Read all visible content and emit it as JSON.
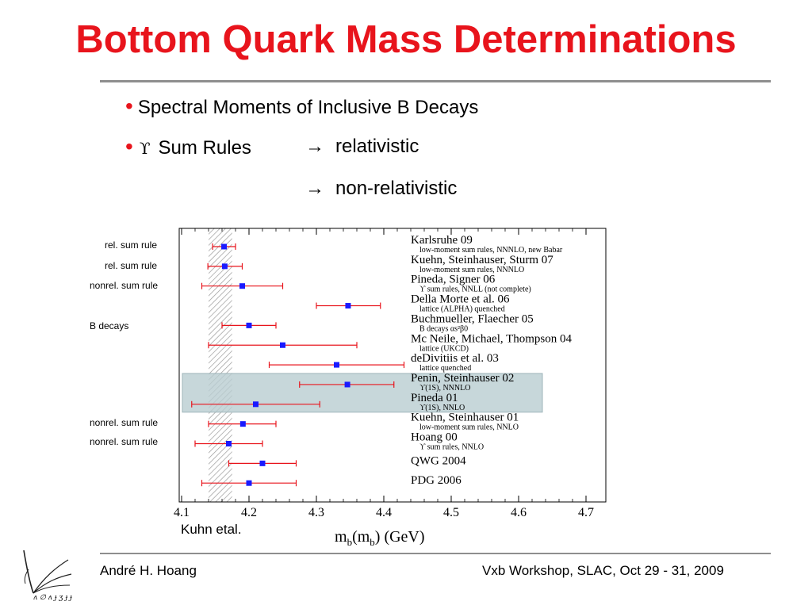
{
  "title": "Bottom Quark Mass Determinations",
  "bullets": {
    "b1": "Spectral Moments of Inclusive B Decays",
    "b2_symbol": "ϒ",
    "b2_text": "Sum Rules",
    "arrow": "→",
    "arrow_items": [
      "relativistic",
      "non-relativistic"
    ]
  },
  "side_labels": [
    "rel. sum rule",
    "rel. sum rule",
    "nonrel. sum rule",
    "B decays",
    "nonrel. sum rule",
    "nonrel. sum rule"
  ],
  "caption": "Kuhn etal.",
  "footer": {
    "author": "André H. Hoang",
    "event": "Vxb Workshop, SLAC, Oct 29 - 31, 2009"
  },
  "colors": {
    "title": "#e8141c",
    "point": "#1a1aff",
    "errorbar": "#e8141c",
    "highlight": "#b9cdd1"
  },
  "chart_data": {
    "type": "scatter",
    "xlabel_main": "m",
    "xlabel_sub1": "b",
    "xlabel_mid": "(m",
    "xlabel_sub2": "b",
    "xlabel_unit": ") (GeV)",
    "xlim": [
      4.1,
      4.75
    ],
    "xticks": [
      "4.1",
      "4.2",
      "4.3",
      "4.4",
      "4.5",
      "4.6",
      "4.7"
    ],
    "band": [
      4.14,
      4.175
    ],
    "highlighted": [
      7,
      8
    ],
    "entries": [
      {
        "name": "Karlsruhe 09",
        "sub": "low-moment sum rules, NNNLO, new Babar",
        "value": 4.163,
        "err": [
          4.146,
          4.18
        ]
      },
      {
        "name": "Kuehn, Steinhauser, Sturm 07",
        "sub": "low-moment sum rules, NNNLO",
        "value": 4.164,
        "err": [
          4.139,
          4.19
        ]
      },
      {
        "name": "Pineda, Signer 06",
        "sub": "ϒ sum rules, NNLL (not complete)",
        "value": 4.19,
        "err": [
          4.13,
          4.25
        ]
      },
      {
        "name": "Della Morte et al. 06",
        "sub": "lattice (ALPHA) quenched",
        "value": 4.347,
        "err": [
          4.3,
          4.395
        ]
      },
      {
        "name": "Buchmueller, Flaecher 05",
        "sub": "B decays αs²β0",
        "value": 4.2,
        "err": [
          4.16,
          4.24
        ]
      },
      {
        "name": "Mc Neile, Michael, Thompson 04",
        "sub": "lattice (UKCD)",
        "value": 4.25,
        "err": [
          4.14,
          4.36
        ]
      },
      {
        "name": "deDivitiis et al. 03",
        "sub": "lattice quenched",
        "value": 4.33,
        "err": [
          4.23,
          4.43
        ]
      },
      {
        "name": "Penin, Steinhauser 02",
        "sub": "ϒ(1S), NNNLO",
        "value": 4.346,
        "err": [
          4.275,
          4.415
        ]
      },
      {
        "name": "Pineda 01",
        "sub": "ϒ(1S), NNLO",
        "value": 4.21,
        "err": [
          4.115,
          4.305
        ]
      },
      {
        "name": "Kuehn, Steinhauser 01",
        "sub": "low-moment sum rules, NNLO",
        "value": 4.191,
        "err": [
          4.14,
          4.24
        ]
      },
      {
        "name": "Hoang 00",
        "sub": "ϒ sum rules, NNLO",
        "value": 4.17,
        "err": [
          4.12,
          4.22
        ]
      },
      {
        "name": "QWG 2004",
        "sub": "",
        "value": 4.22,
        "err": [
          4.17,
          4.27
        ]
      },
      {
        "name": "PDG 2006",
        "sub": "",
        "value": 4.2,
        "err": [
          4.13,
          4.27
        ]
      }
    ]
  }
}
